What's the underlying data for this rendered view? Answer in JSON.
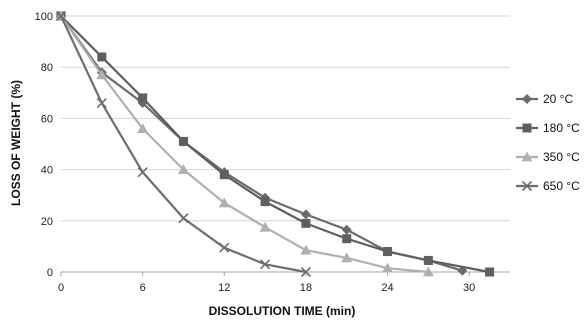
{
  "chart_data": {
    "type": "line",
    "title": "",
    "xlabel": "DISSOLUTION TIME (min)",
    "ylabel": "LOSS OF WEIGHT (%)",
    "xlim": [
      0,
      33
    ],
    "ylim": [
      0,
      100
    ],
    "xticks": [
      0,
      6,
      12,
      18,
      24,
      30
    ],
    "yticks": [
      0,
      20,
      40,
      60,
      80,
      100
    ],
    "grid": "horizontal",
    "legend_position": "right",
    "series": [
      {
        "name": "20 °C",
        "marker": "diamond",
        "color": "#6b6b6b",
        "x": [
          0,
          3,
          6,
          9,
          12,
          15,
          18,
          21,
          24,
          27,
          29.5
        ],
        "y": [
          100,
          78,
          66,
          51,
          39,
          29,
          22.5,
          16.5,
          8,
          4.5,
          0.5
        ]
      },
      {
        "name": "180 °C",
        "marker": "square",
        "color": "#5f5f5f",
        "x": [
          0,
          3,
          6,
          9,
          12,
          15,
          18,
          21,
          24,
          27,
          31.5
        ],
        "y": [
          100,
          84,
          68,
          51,
          38,
          27.5,
          19,
          13,
          8,
          4.5,
          0
        ]
      },
      {
        "name": "350 °C",
        "marker": "triangle",
        "color": "#b0b0b0",
        "x": [
          0,
          3,
          6,
          9,
          12,
          15,
          18,
          21,
          24,
          27
        ],
        "y": [
          100,
          77,
          56,
          40,
          27,
          17.5,
          8.5,
          5.5,
          1.5,
          0
        ]
      },
      {
        "name": "650 °C",
        "marker": "x",
        "color": "#6e6e6e",
        "x": [
          0,
          3,
          6,
          9,
          12,
          15,
          18
        ],
        "y": [
          100,
          66,
          39,
          21,
          9.5,
          3,
          0
        ]
      }
    ]
  }
}
